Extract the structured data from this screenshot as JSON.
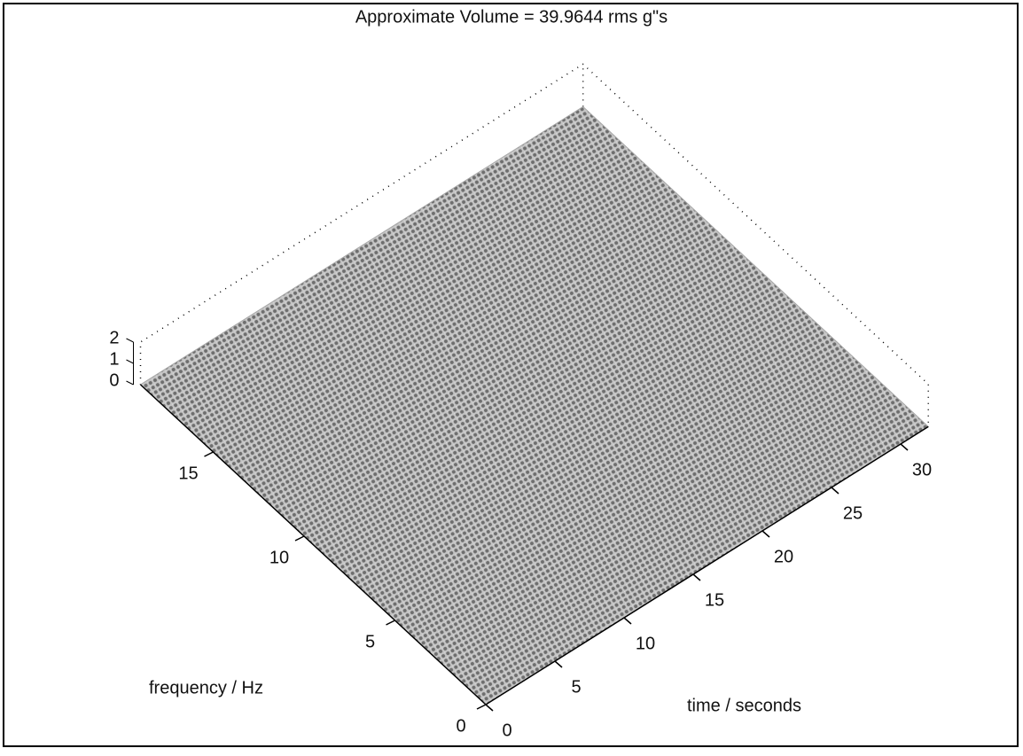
{
  "chart_data": {
    "type": "surface",
    "title": "Approximate Volume = 39.9644 rms g\"s",
    "xlabel": "time / seconds",
    "ylabel": "frequency / Hz",
    "xlim": [
      0,
      32
    ],
    "xticks": [
      0,
      5,
      10,
      15,
      20,
      25,
      30
    ],
    "ylim": [
      0,
      19
    ],
    "yticks": [
      0,
      5,
      10,
      15
    ],
    "zlim": [
      0,
      2
    ],
    "zticks": [
      0,
      1,
      2
    ],
    "color": "#a8a8a8"
  }
}
